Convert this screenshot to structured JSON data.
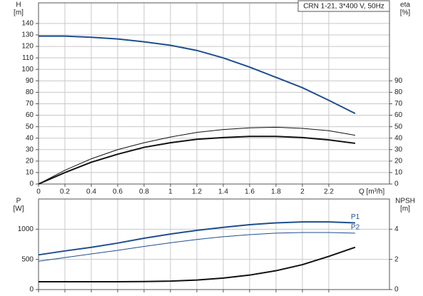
{
  "chart_data": [
    {
      "type": "line",
      "title": "CRN 1-21, 3*400 V, 50Hz",
      "ylabel": "H",
      "yunit": "[m]",
      "y2label": "eta",
      "y2unit": "[%]",
      "xlabel": "Q [m³/h]",
      "x": [
        0,
        0.2,
        0.4,
        0.6,
        0.8,
        1.0,
        1.2,
        1.4,
        1.6,
        1.8,
        2.0,
        2.2,
        2.4
      ],
      "xlim": [
        0,
        2.66
      ],
      "xticks": [
        0,
        0.2,
        0.4,
        0.6,
        0.8,
        1.0,
        1.2,
        1.4,
        1.6,
        1.8,
        2.0,
        2.2
      ],
      "ylim": [
        0,
        158
      ],
      "yticks": [
        0,
        10,
        20,
        30,
        40,
        50,
        60,
        70,
        80,
        90,
        100,
        110,
        120,
        130,
        140
      ],
      "y2lim": [
        0,
        158
      ],
      "y2ticks": [
        0,
        10,
        20,
        30,
        40,
        50,
        60,
        70,
        80,
        90
      ],
      "grid": true,
      "show_xtick_labels": true,
      "series": [
        {
          "color": "#1f4e8c",
          "width": 2,
          "values": [
            129,
            129,
            128,
            126.5,
            124,
            121,
            116.5,
            110,
            102,
            93,
            84,
            73,
            61.5
          ]
        },
        {
          "color": "#111111",
          "width": 1,
          "axis": "y2",
          "values": [
            0,
            12,
            22,
            30,
            36,
            41,
            45,
            47.5,
            49,
            49.5,
            48.5,
            46.5,
            42.5
          ]
        },
        {
          "color": "#111111",
          "width": 2,
          "axis": "y2",
          "values": [
            0,
            10,
            19,
            26,
            32,
            36,
            39,
            40.5,
            41.5,
            41.5,
            40.5,
            38.5,
            35.5
          ]
        }
      ]
    },
    {
      "type": "line",
      "ylabel": "P",
      "yunit": "[W]",
      "y2label": "NPSH",
      "y2unit": "[m]",
      "x": [
        0,
        0.2,
        0.4,
        0.6,
        0.8,
        1.0,
        1.2,
        1.4,
        1.6,
        1.8,
        2.0,
        2.2,
        2.4
      ],
      "xlim": [
        0,
        2.66
      ],
      "xticks": [
        0,
        0.2,
        0.4,
        0.6,
        0.8,
        1.0,
        1.2,
        1.4,
        1.6,
        1.8,
        2.0,
        2.2
      ],
      "ylim": [
        0,
        1500
      ],
      "yticks": [
        0,
        500,
        1000
      ],
      "y2lim": [
        0,
        6
      ],
      "y2ticks": [
        0,
        2,
        4
      ],
      "grid": true,
      "show_xtick_labels": false,
      "series": [
        {
          "name": "P1",
          "color": "#1f4e8c",
          "width": 2,
          "values": [
            575,
            640,
            700,
            770,
            850,
            920,
            980,
            1030,
            1075,
            1105,
            1120,
            1120,
            1105
          ]
        },
        {
          "name": "P2",
          "color": "#1f4e8c",
          "width": 1,
          "values": [
            470,
            530,
            590,
            650,
            715,
            775,
            830,
            875,
            910,
            935,
            945,
            945,
            935
          ]
        },
        {
          "color": "#111111",
          "width": 2,
          "axis": "y2",
          "values": [
            0.52,
            0.52,
            0.52,
            0.52,
            0.53,
            0.56,
            0.63,
            0.76,
            0.96,
            1.25,
            1.65,
            2.2,
            2.8
          ]
        }
      ]
    }
  ]
}
